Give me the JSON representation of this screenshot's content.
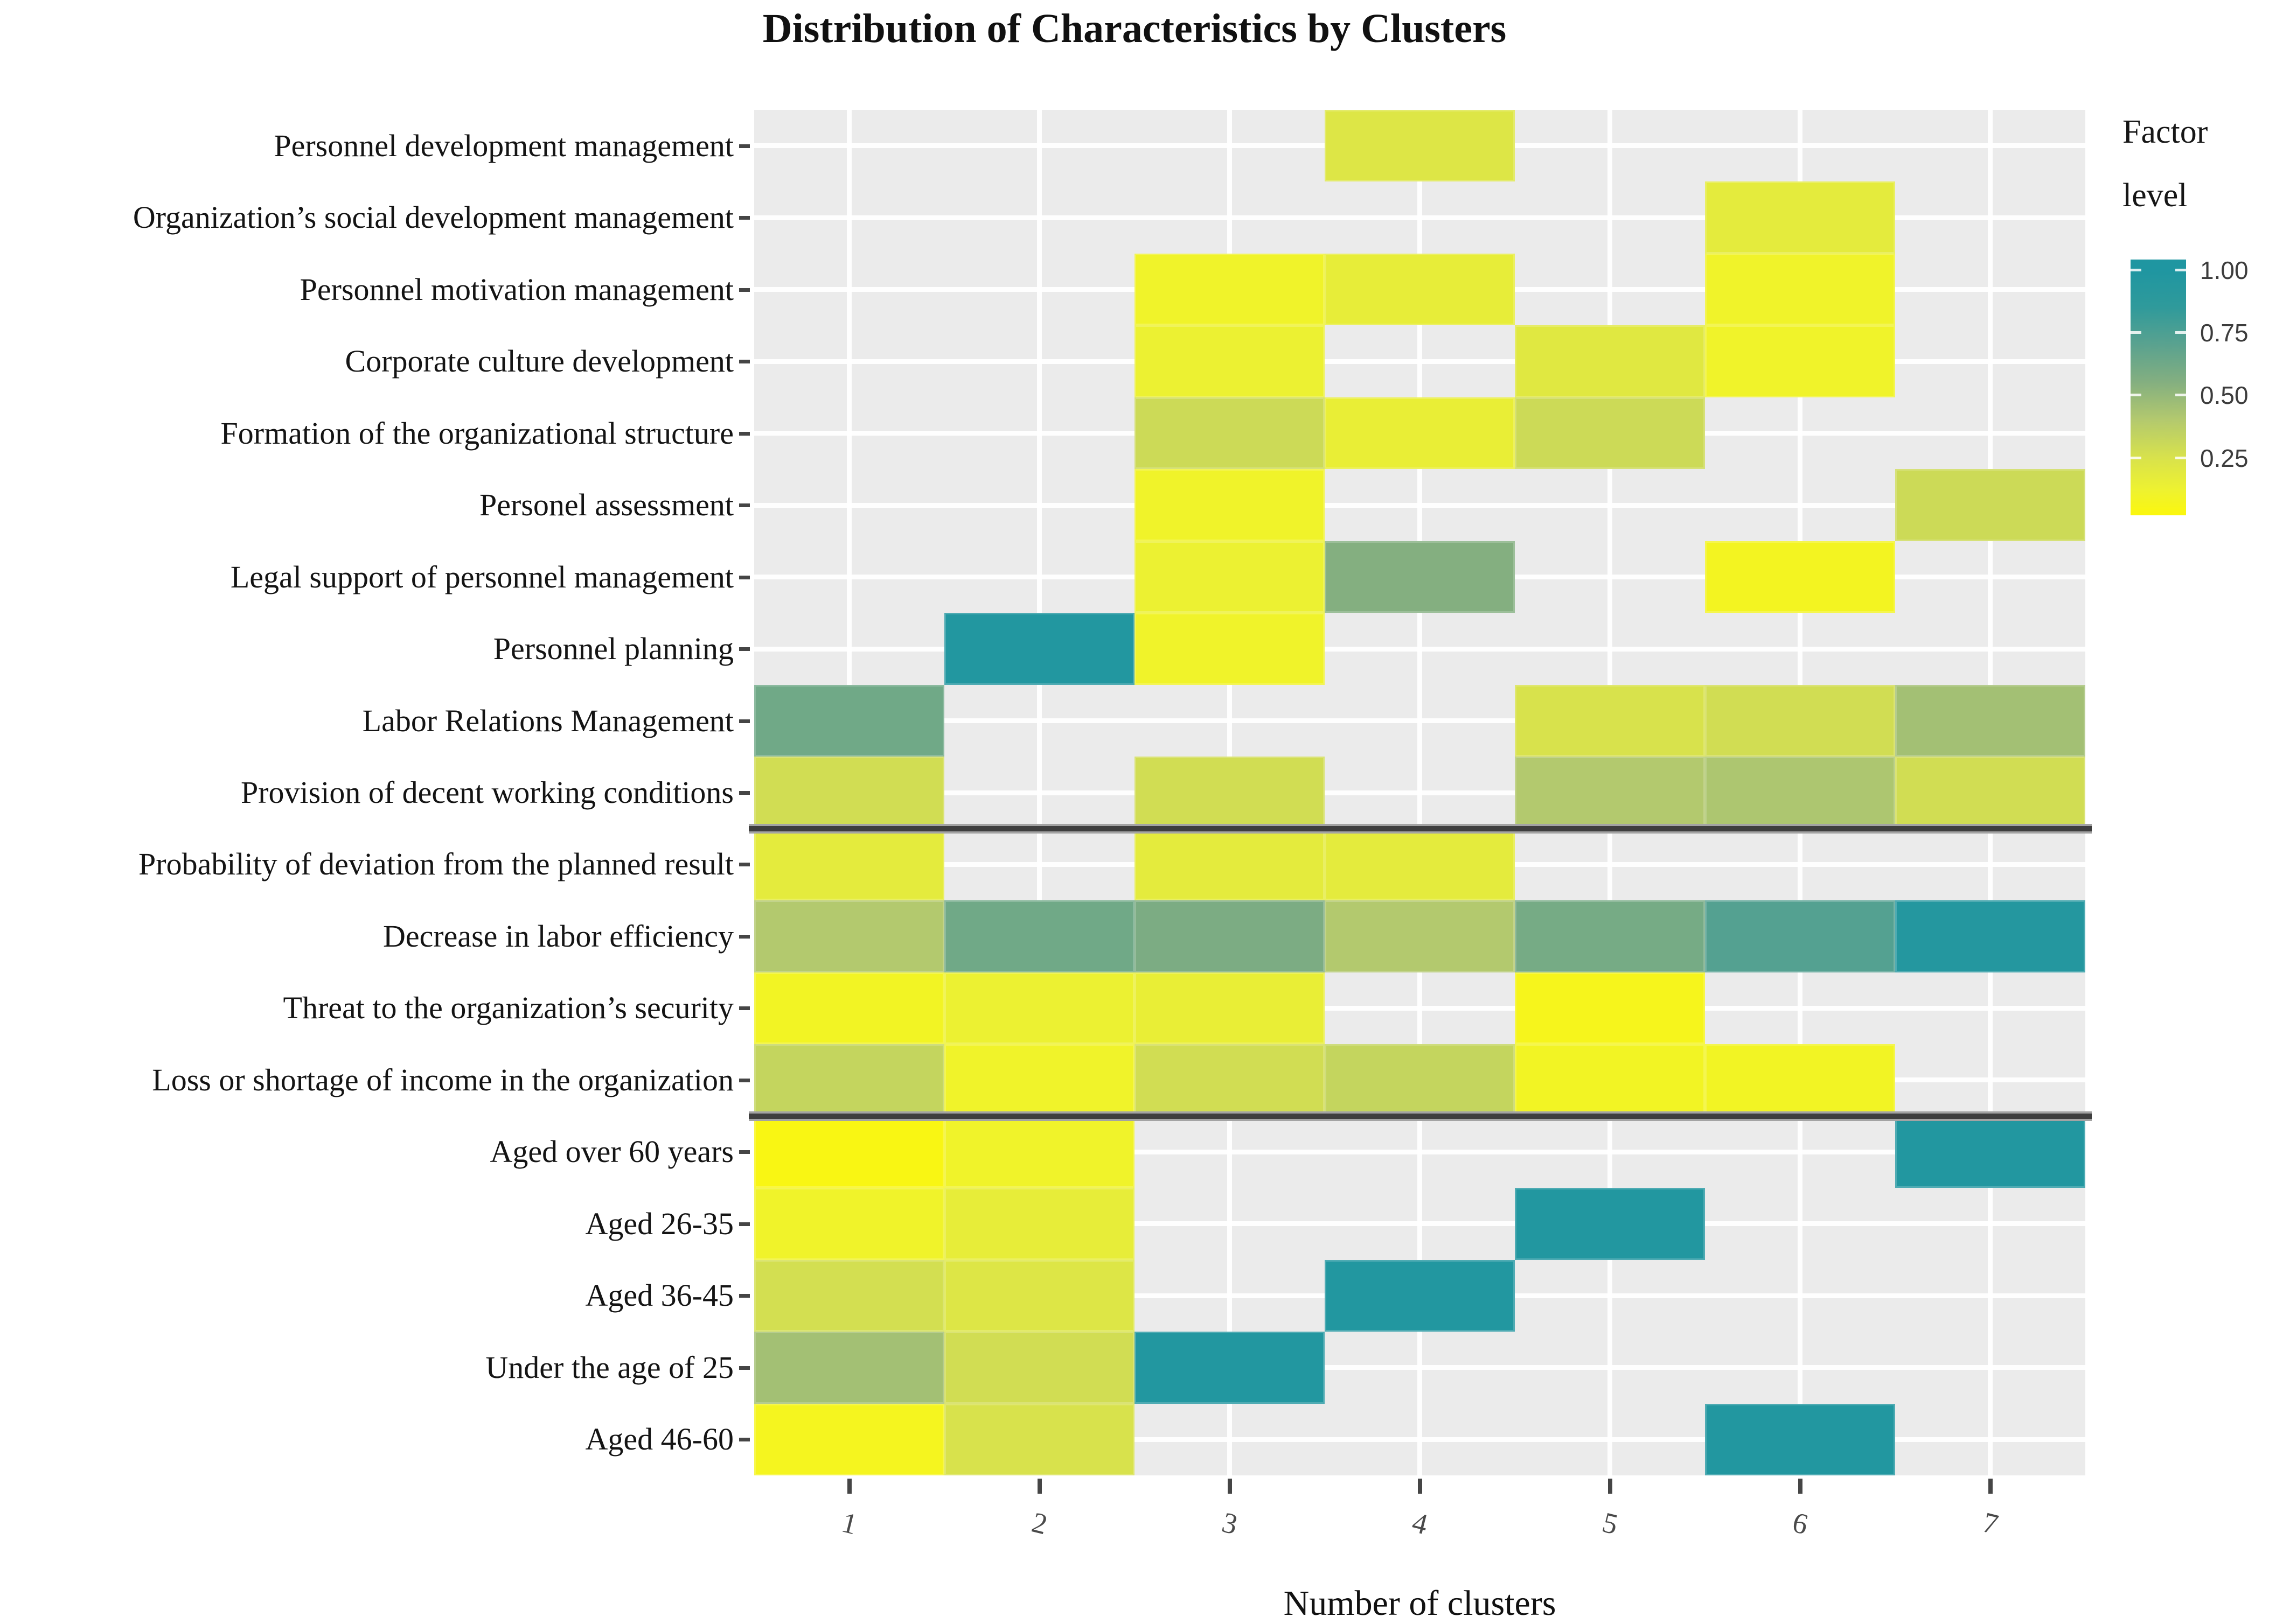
{
  "title": "Distribution of Characteristics by Clusters",
  "xlabel": "Number of clusters",
  "legend": {
    "line1": "Factor",
    "line2": "level",
    "tick_labels": [
      "1.00",
      "0.75",
      "0.50",
      "0.25"
    ],
    "tick_values": [
      1.0,
      0.75,
      0.5,
      0.25
    ]
  },
  "colors": {
    "panel_background": "#ebebeb",
    "gridline": "#ffffff",
    "separator": "#3e3e3e",
    "teal_max": "#1f96a1",
    "yellow_min": "#fbf70d",
    "tick": "#454545",
    "x_tick_label": "#4a4a4a"
  },
  "chart_data": {
    "type": "heatmap",
    "title": "Distribution of Characteristics by Clusters",
    "xlabel": "Number of clusters",
    "value_name": "Factor level",
    "x_ticks": [
      "1",
      "2",
      "3",
      "4",
      "5",
      "6",
      "7"
    ],
    "x": [
      1,
      2,
      3,
      4,
      5,
      6,
      7
    ],
    "legend_position": "right",
    "scale": {
      "min": 0,
      "max": 1,
      "stops": [
        [
          1.0,
          "#1f96a1"
        ],
        [
          0.85,
          "#2f9a9b"
        ],
        [
          0.7,
          "#5aa28f"
        ],
        [
          0.55,
          "#84af80"
        ],
        [
          0.4,
          "#b3c96e"
        ],
        [
          0.25,
          "#d8e24c"
        ],
        [
          0.12,
          "#eef230"
        ],
        [
          0.0,
          "#fbf70d"
        ]
      ]
    },
    "separators_after_row": [
      10,
      14
    ],
    "rows": [
      {
        "label": "Personnel development management",
        "values": {
          "4": 0.22
        }
      },
      {
        "label": "Organization’s social development management",
        "values": {
          "6": 0.18
        }
      },
      {
        "label": "Personnel motivation management",
        "values": {
          "3": 0.1,
          "4": 0.16,
          "6": 0.1
        }
      },
      {
        "label": "Corporate culture development",
        "values": {
          "3": 0.13,
          "5": 0.2,
          "6": 0.1
        }
      },
      {
        "label": "Formation of the organizational structure",
        "values": {
          "3": 0.3,
          "4": 0.15,
          "5": 0.3
        }
      },
      {
        "label": "Personel assessment",
        "values": {
          "3": 0.1,
          "7": 0.3
        }
      },
      {
        "label": "Legal support of personnel management",
        "values": {
          "3": 0.13,
          "4": 0.55,
          "6": 0.07
        }
      },
      {
        "label": "Personnel planning",
        "values": {
          "2": 0.97,
          "3": 0.1
        }
      },
      {
        "label": "Labor Relations Management",
        "values": {
          "1": 0.62,
          "5": 0.25,
          "6": 0.28,
          "7": 0.45
        }
      },
      {
        "label": "Provision of decent working conditions",
        "values": {
          "1": 0.28,
          "3": 0.28,
          "5": 0.4,
          "6": 0.42,
          "7": 0.28
        }
      },
      {
        "label": "Probability of deviation from the planned result",
        "values": {
          "1": 0.18,
          "3": 0.18,
          "4": 0.18
        }
      },
      {
        "label": "Decrease in labor efficiency",
        "values": {
          "1": 0.4,
          "2": 0.62,
          "3": 0.58,
          "4": 0.4,
          "5": 0.6,
          "6": 0.72,
          "7": 0.95
        }
      },
      {
        "label": "Threat to the organization’s security",
        "values": {
          "1": 0.08,
          "2": 0.13,
          "3": 0.15,
          "5": 0.05
        }
      },
      {
        "label": "Loss or shortage of income in the organization",
        "values": {
          "1": 0.33,
          "2": 0.1,
          "3": 0.28,
          "4": 0.33,
          "5": 0.08,
          "6": 0.08
        }
      },
      {
        "label": "Aged over 60 years",
        "values": {
          "1": 0.02,
          "2": 0.1,
          "7": 0.97
        }
      },
      {
        "label": "Aged 26-35",
        "values": {
          "1": 0.1,
          "2": 0.16,
          "5": 0.97
        }
      },
      {
        "label": "Aged 36-45",
        "values": {
          "1": 0.27,
          "2": 0.22,
          "4": 0.97
        }
      },
      {
        "label": "Under the age of 25",
        "values": {
          "1": 0.45,
          "2": 0.28,
          "3": 0.97
        }
      },
      {
        "label": "Aged 46-60",
        "values": {
          "1": 0.06,
          "2": 0.25,
          "6": 0.97
        }
      }
    ]
  }
}
